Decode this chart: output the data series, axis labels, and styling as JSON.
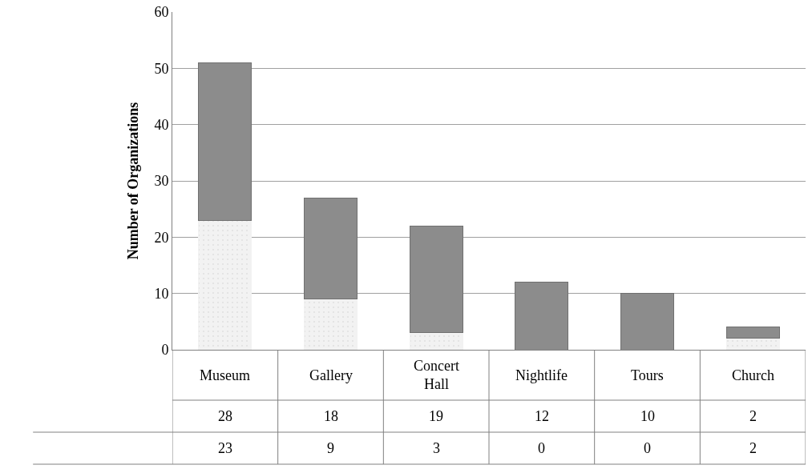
{
  "chart_data": {
    "type": "bar",
    "stacked": true,
    "ylabel": "Number of Organizations",
    "categories": [
      "Museum",
      "Gallery",
      "Concert Hall",
      "Nightlife",
      "Tours",
      "Church"
    ],
    "series": [
      {
        "color": "#f2f2f2",
        "values": [
          23,
          9,
          3,
          0,
          0,
          2
        ]
      },
      {
        "color": "#8c8c8c",
        "values": [
          28,
          18,
          19,
          12,
          10,
          2
        ]
      }
    ],
    "ylim": [
      0,
      60
    ],
    "yticks": [
      0,
      10,
      20,
      30,
      40,
      50,
      60
    ],
    "grid": "y",
    "data_labels": true
  }
}
